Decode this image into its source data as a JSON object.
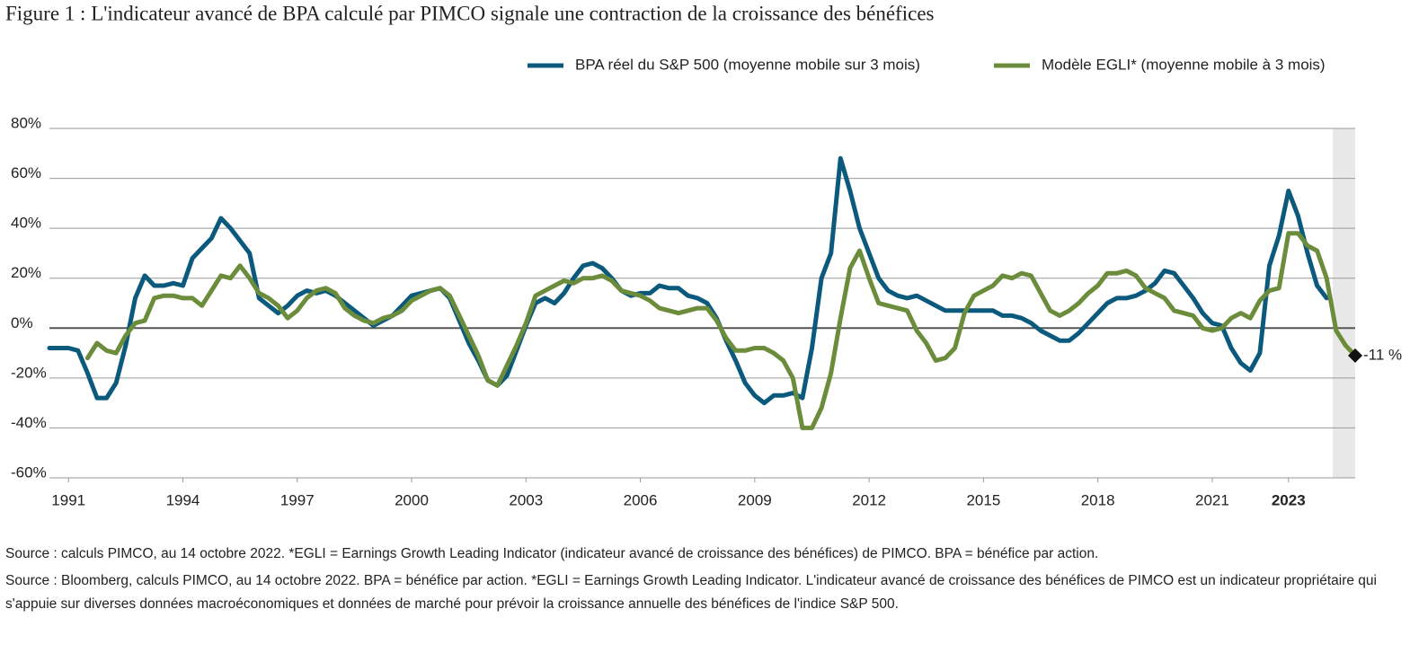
{
  "chart_data": {
    "type": "line",
    "title": "Figure 1 : L'indicateur avancé de BPA calculé par PIMCO signale une contraction de la croissance des bénéfices",
    "x": [
      1990.5,
      1990.75,
      1991,
      1991.25,
      1991.5,
      1991.75,
      1992,
      1992.25,
      1992.5,
      1992.75,
      1993,
      1993.25,
      1993.5,
      1993.75,
      1994,
      1994.25,
      1994.5,
      1994.75,
      1995,
      1995.25,
      1995.5,
      1995.75,
      1996,
      1996.25,
      1996.5,
      1996.75,
      1997,
      1997.25,
      1997.5,
      1997.75,
      1998,
      1998.25,
      1998.5,
      1998.75,
      1999,
      1999.25,
      1999.5,
      1999.75,
      2000,
      2000.25,
      2000.5,
      2000.75,
      2001,
      2001.25,
      2001.5,
      2001.75,
      2002,
      2002.25,
      2002.5,
      2002.75,
      2003,
      2003.25,
      2003.5,
      2003.75,
      2004,
      2004.25,
      2004.5,
      2004.75,
      2005,
      2005.25,
      2005.5,
      2005.75,
      2006,
      2006.25,
      2006.5,
      2006.75,
      2007,
      2007.25,
      2007.5,
      2007.75,
      2008,
      2008.25,
      2008.5,
      2008.75,
      2009,
      2009.25,
      2009.5,
      2009.75,
      2010,
      2010.25,
      2010.5,
      2010.75,
      2011,
      2011.25,
      2011.5,
      2011.75,
      2012,
      2012.25,
      2012.5,
      2012.75,
      2013,
      2013.25,
      2013.5,
      2013.75,
      2014,
      2014.25,
      2014.5,
      2014.75,
      2015,
      2015.25,
      2015.5,
      2015.75,
      2016,
      2016.25,
      2016.5,
      2016.75,
      2017,
      2017.25,
      2017.5,
      2017.75,
      2018,
      2018.25,
      2018.5,
      2018.75,
      2019,
      2019.25,
      2019.5,
      2019.75,
      2020,
      2020.25,
      2020.5,
      2020.75,
      2021,
      2021.25,
      2021.5,
      2021.75,
      2022,
      2022.25,
      2022.5,
      2022.75,
      2023,
      2023.25,
      2023.5,
      2023.75,
      2024,
      2024.25,
      2024.5,
      2024.75
    ],
    "series": [
      {
        "name": "BPA réel du S&P 500 (moyenne mobile sur 3 mois)",
        "color": "#0b5a7d",
        "values": [
          -8,
          -8,
          -8,
          -9,
          -18,
          -28,
          -28,
          -22,
          -7,
          12,
          21,
          17,
          17,
          18,
          17,
          28,
          32,
          36,
          44,
          40,
          35,
          30,
          12,
          9,
          6,
          9,
          13,
          15,
          14,
          15,
          13,
          10,
          7,
          4,
          1,
          3,
          5,
          9,
          13,
          14,
          15,
          16,
          12,
          3,
          -6,
          -13,
          -21,
          -23,
          -19,
          -9,
          1,
          10,
          12,
          10,
          14,
          20,
          25,
          26,
          24,
          20,
          15,
          13,
          14,
          14,
          17,
          16,
          16,
          13,
          12,
          10,
          4,
          -5,
          -13,
          -22,
          -27,
          -30,
          -27,
          -27,
          -26,
          -28,
          -8,
          20,
          30,
          68,
          55,
          40,
          30,
          20,
          15,
          13,
          12,
          13,
          11,
          9,
          7,
          7,
          7,
          7,
          7,
          7,
          5,
          5,
          4,
          2,
          -1,
          -3,
          -5,
          -5,
          -2,
          2,
          6,
          10,
          12,
          12,
          13,
          15,
          18,
          23,
          22,
          17,
          12,
          6,
          2,
          1,
          -8,
          -14,
          -17,
          -10,
          25,
          37,
          55,
          45,
          30,
          17,
          12,
          null,
          null,
          null
        ]
      },
      {
        "name": "Modèle EGLI* (moyenne mobile à 3 mois)",
        "color": "#6b8c3a",
        "values": [
          null,
          null,
          null,
          null,
          -12,
          -6,
          -9,
          -10,
          -3,
          2,
          3,
          12,
          13,
          13,
          12,
          12,
          9,
          15,
          21,
          20,
          25,
          20,
          14,
          12,
          9,
          4,
          7,
          12,
          15,
          16,
          14,
          8,
          5,
          3,
          2,
          4,
          5,
          7,
          11,
          13,
          15,
          16,
          13,
          5,
          -3,
          -11,
          -21,
          -23,
          -15,
          -7,
          2,
          13,
          15,
          17,
          19,
          18,
          20,
          20,
          21,
          19,
          15,
          14,
          13,
          11,
          8,
          7,
          6,
          7,
          8,
          8,
          3,
          -4,
          -9,
          -9,
          -8,
          -8,
          -10,
          -13,
          -20,
          -40,
          -40,
          -32,
          -18,
          4,
          24,
          31,
          20,
          10,
          9,
          8,
          7,
          -1,
          -6,
          -13,
          -12,
          -8,
          6,
          13,
          15,
          17,
          21,
          20,
          22,
          21,
          14,
          7,
          5,
          7,
          10,
          14,
          17,
          22,
          22,
          23,
          21,
          16,
          14,
          12,
          7,
          6,
          5,
          0,
          -1,
          0,
          4,
          6,
          4,
          11,
          15,
          16,
          38,
          38,
          33,
          31,
          20,
          -1,
          -7,
          -11
        ]
      }
    ],
    "end_label": "-11 %",
    "xlim": [
      1990.5,
      2024.75
    ],
    "xticks": [
      1991,
      1994,
      1997,
      2000,
      2003,
      2006,
      2009,
      2012,
      2015,
      2018,
      2021,
      2023
    ],
    "ylim": [
      -60,
      80
    ],
    "yticks": [
      {
        "value": -60,
        "label": "-60%"
      },
      {
        "value": -40,
        "label": "-40%"
      },
      {
        "value": -20,
        "label": "-20%"
      },
      {
        "value": 0,
        "label": "0%"
      },
      {
        "value": 20,
        "label": "20%"
      },
      {
        "value": 40,
        "label": "40%"
      },
      {
        "value": 60,
        "label": "60%"
      },
      {
        "value": 80,
        "label": "80%"
      }
    ],
    "grid": true,
    "legend": "top-right",
    "notes": [
      "Source : calculs PIMCO, au 14 octobre 2022. *EGLI = Earnings Growth Leading Indicator (indicateur avancé de croissance des bénéfices) de PIMCO. BPA = bénéfice par action.",
      "Source : Bloomberg, calculs PIMCO, au 14 octobre 2022. BPA = bénéfice par action. *EGLI = Earnings Growth Leading Indicator. L'indicateur avancé de croissance des bénéfices de PIMCO est un indicateur propriétaire qui s'appuie sur diverses données macroéconomiques et données de marché pour prévoir la croissance annuelle des bénéfices de l'indice S&P 500."
    ]
  }
}
